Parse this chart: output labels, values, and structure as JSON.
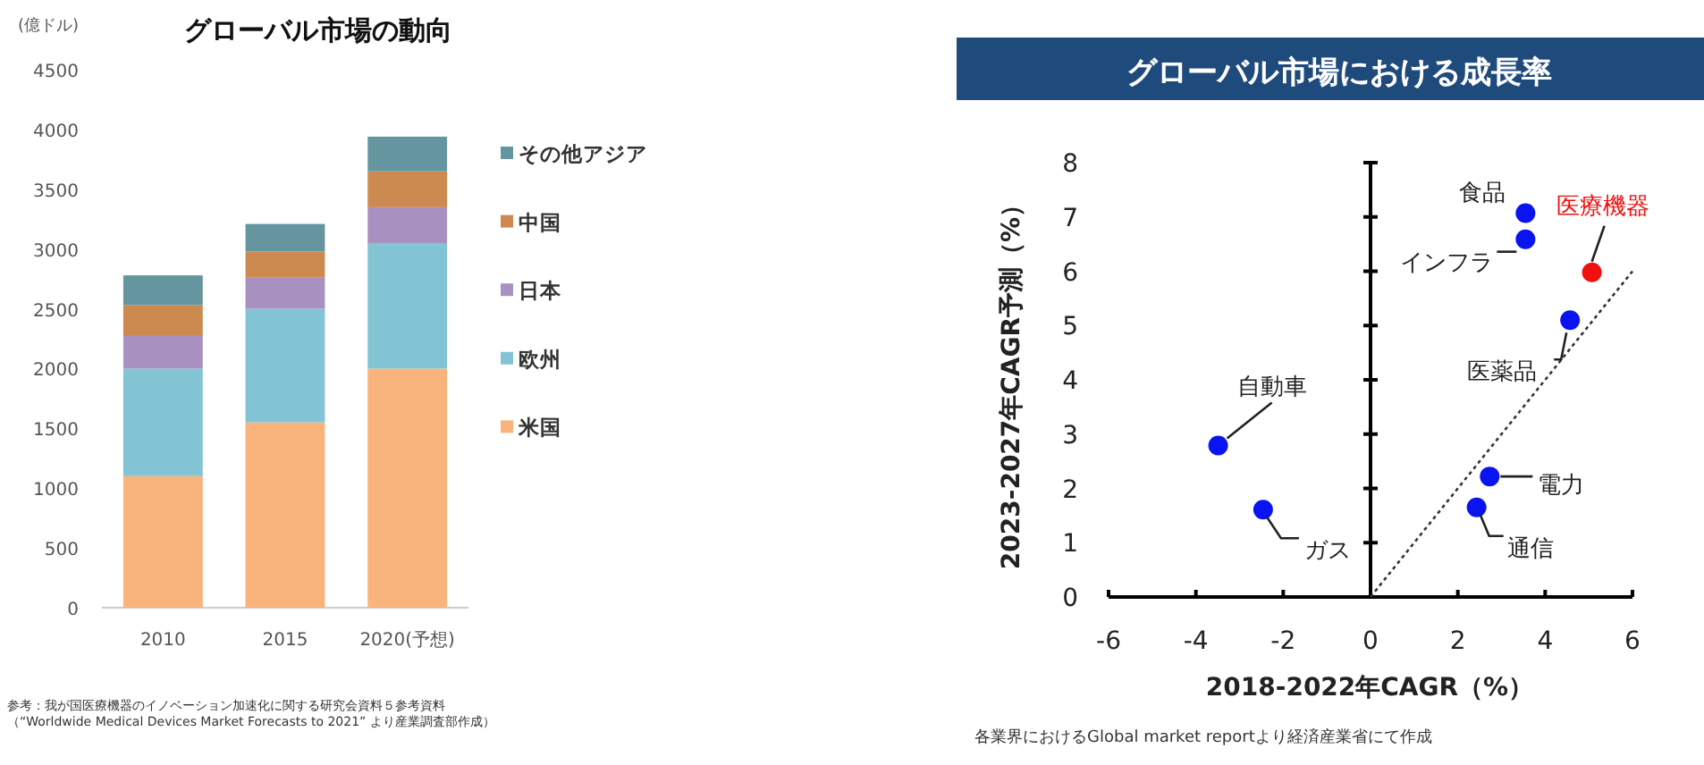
{
  "chart_data": [
    {
      "type": "bar",
      "stacked": true,
      "title": "グローバル市場の動向",
      "ylabel": "(億ドル)",
      "categories": [
        "2010",
        "2015",
        "2020(予想)"
      ],
      "ylim": [
        0,
        4500
      ],
      "yticks": [
        0,
        500,
        1000,
        1500,
        2000,
        2500,
        3000,
        3500,
        4000,
        4500
      ],
      "legend": "right",
      "grid": false,
      "series": [
        {
          "name": "米国",
          "color": "#f8b47c",
          "values": [
            1100,
            1550,
            2000
          ]
        },
        {
          "name": "欧州",
          "color": "#82c4d4",
          "values": [
            900,
            950,
            1050
          ]
        },
        {
          "name": "日本",
          "color": "#a891c0",
          "values": [
            280,
            260,
            300
          ]
        },
        {
          "name": "中国",
          "color": "#cc8a50",
          "values": [
            250,
            220,
            300
          ]
        },
        {
          "name": "その他アジア",
          "color": "#6596a0",
          "values": [
            250,
            230,
            290
          ]
        }
      ],
      "annotations": [
        "参考：我が国医療機器のイノベーション加速化に関する研究会資料５参考資料",
        "（“Worldwide Medical Devices Market Forecasts to 2021” より産業調査部作成）"
      ]
    },
    {
      "type": "scatter",
      "title": "グローバル市場における成長率",
      "xlabel": "2018-2022年CAGR（%）",
      "ylabel": "2023-2027年CAGR予測（%）",
      "xlim": [
        -6,
        6
      ],
      "ylim": [
        0,
        8
      ],
      "xticks": [
        -6,
        -4,
        -2,
        0,
        2,
        4,
        6
      ],
      "yticks": [
        0,
        1,
        2,
        3,
        4,
        5,
        6,
        7,
        8
      ],
      "series": [
        {
          "color": "#0a14f0",
          "marker": "circle",
          "x": [
            3.55,
            3.55,
            4.57,
            -3.49,
            -2.46,
            2.73,
            2.43
          ],
          "values": [
            7.07,
            6.59,
            5.1,
            2.79,
            1.61,
            2.22,
            1.65
          ]
        },
        {
          "color": "#f01010",
          "marker": "circle",
          "x": [
            5.07
          ],
          "values": [
            5.98
          ]
        },
        {
          "type": "line",
          "color": "#333333",
          "line_style": "dotted",
          "marker": "none",
          "x": [
            0,
            6
          ],
          "values": [
            0,
            6
          ]
        }
      ],
      "annotations": [
        {
          "text": "食品",
          "x": 3.55,
          "y": 7.07
        },
        {
          "text": "インフラ",
          "x": 3.55,
          "y": 6.59
        },
        {
          "text": "医療機器",
          "x": 5.07,
          "y": 5.98
        },
        {
          "text": "医薬品",
          "x": 4.57,
          "y": 5.1
        },
        {
          "text": "自動車",
          "x": -3.49,
          "y": 2.79
        },
        {
          "text": "ガス",
          "x": -2.46,
          "y": 1.61
        },
        {
          "text": "電力",
          "x": 2.73,
          "y": 2.22
        },
        {
          "text": "通信",
          "x": 2.43,
          "y": 1.65
        },
        "各業界におけるGlobal market reportより経済産業省にて作成"
      ]
    }
  ]
}
